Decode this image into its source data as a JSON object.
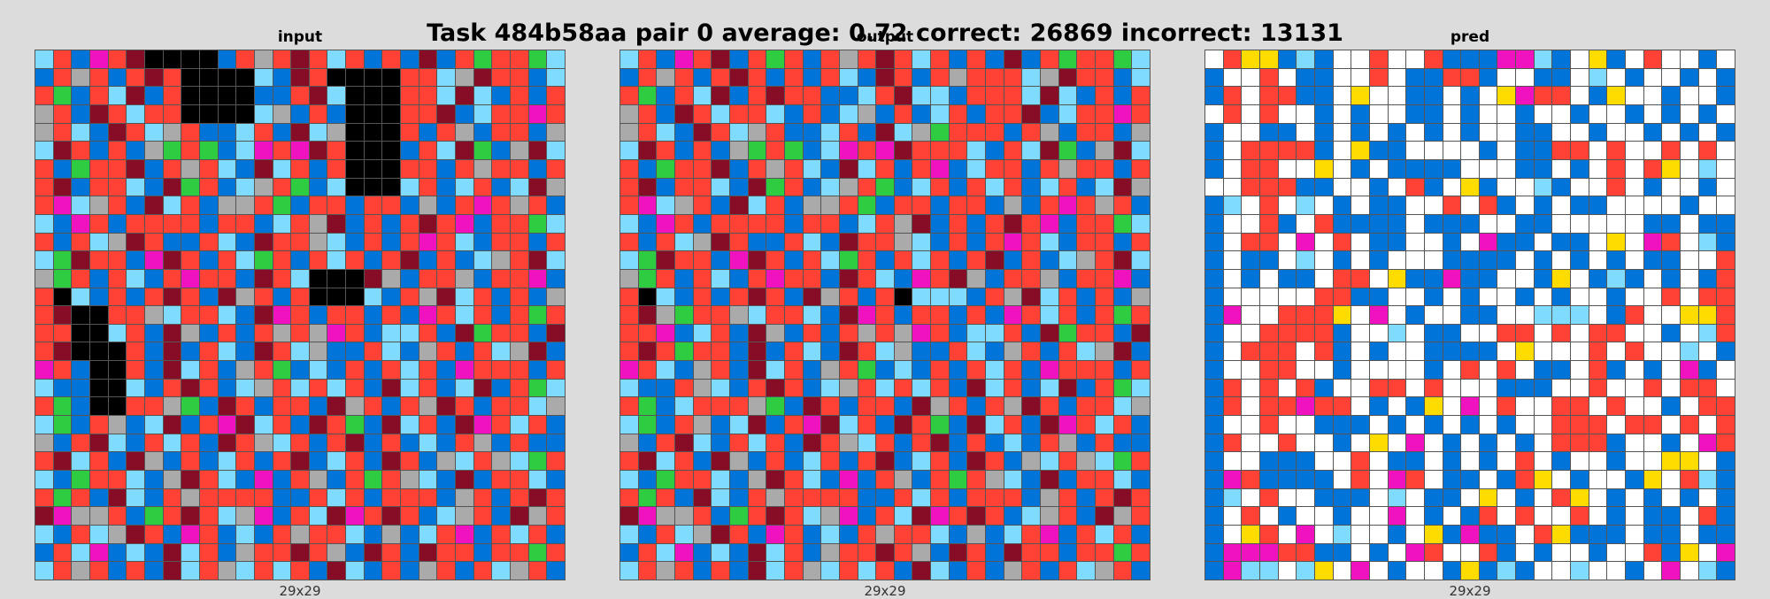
{
  "title": "Task 484b58aa pair 0 average: 0.72 correct: 26869 incorrect: 13131",
  "palette": {
    "0": "#000000",
    "1": "#0074D9",
    "2": "#FF4136",
    "3": "#2ECC40",
    "4": "#FFDC00",
    "5": "#AAAAAA",
    "6": "#F012BE",
    "7": "#7FDBFF",
    "8": "#870C25",
    "w": "#FFFFFF"
  },
  "panels": [
    {
      "label": "input",
      "dims": "29x29",
      "grid": [
        "72162800001252827212181232237",
        "12521282000071820000227582217",
        "23127812000011287000227871212",
        "52182722000075121000228172262",
        "52718275211721875000212512215",
        "78212153231762682000127831587",
        "21322812527187212000221252212",
        "28122718321752317000721721785",
        "26752187215523122122151262521",
        "71621222212217258121282612237",
        "21275821127182257121262712212",
        "73822168212732127212812175287",
        "53212712622182700085122512261",
        "20712128218521200071258721215",
        "28002257227186212212162721232",
        "22007218512125256217721832218",
        "28000218127182751127152127581",
        "62100218721523171212721622212",
        "71100712821752727218721781237",
        "23100225318212218521258212275",
        "73125178126872182318721862721",
        "51287127218257212812171251211",
        "28721851217212817218215725732",
        "71322715827161251232571812271",
        "23218712522221127212221521282",
        "86552132827561278628217521852",
        "71275821621712522715172612721",
        "12761718721522825182182212232",
        "72521218725727218712152127521"
      ]
    },
    {
      "label": "output",
      "dims": "29x29",
      "grid": [
        "72162812321252827212181232237",
        "12521282121271821252227582217",
        "23127812822117287712227871212",
        "52182722712175121721228172262",
        "52718275211721875322212512215",
        "78212153231762682227127831587",
        "21322812527187212617221252212",
        "28122718321752317212721721785",
        "26752187215523122122151262521",
        "71621222212217258121282612237",
        "21275821127182257121262712212",
        "73822168212732127212812175287",
        "53212712622182716285122512261",
        "20712128218521207771258721215",
        "28532257227186212212162721232",
        "22617218512125256217721832218",
        "28232218127182751127152127581",
        "62715218721523171212721622212",
        "71125712821752727218721781237",
        "23172225318212218521258212275",
        "73125178126872182318721862721",
        "51287127218257212812171251211",
        "28721851217212817218215725732",
        "71322715827161251232571812271",
        "23218712522221127212221521282",
        "86552132827561278628217521852",
        "71275821621712522715172612721",
        "12761718721522825182182212232",
        "72521218725727218712152127521"
      ]
    },
    {
      "label": "pred",
      "dims": "29x29",
      "grid": [
        "w244171ww2ww21116671w41w2ww1w",
        "1ww2w11ww2w11221ww11w7w1ww1w1",
        "12w2211w4ww11w1w4622w14ww1ww1",
        "w2w2ww1w1ww11w1ww1ww1ww1w1w1w",
        "1ww11w1w1w1w1w1ww11ww1ww1w1w1",
        "1w22221w411wwww1w1122w2ww2w2w",
        "1w22ww4w1w1111www11w1w2w24w7w",
        "ww22211ww1w21w41ww71ww2w1ww1w",
        "17w2w7w1w11ww2w21w1w11wwww1wi",
        "1ww21w21111w111ww11wwwww11w11",
        "1w22w6w2w11ww1w611w11w4w62w71",
        "1w11w7w1w1www1111w1w1w1w11ww2",
        "1w1w11w22w411611ww14w171w1w12",
        "1wwwww2211ww1w1ww1w1ww1ww2w22",
        "16ww2224w6w1ww11ww777w12ww442",
        "1ww22221ww7w11ww22w2w22ww1w72",
        "1w222w21w1ww1111w4www2w2ww7w1",
        "1ww22ww1wwww1w2w2w11w21w1w61w",
        "12w2w21ww22w2www111ww2ww2w22w",
        "12w22622w1w14w6w2ww22w2ww1w22",
        "1ww2ww111w1w1w1w1ww222w22w2w2",
        "12ww2ww1w4w6w1w1w1w2221ww1w62",
        "1ww111ww2w11w1w1w2w1ww1ww44w1",
        "1621111w2w62w11w124w1ww14w271",
        "17w2ww111w7w11w4w1w24w1w1w1w1",
        "1w2w1ww1ww6w1w12w2ww2w1w11w21",
        "1w42w6w7ww1w41611w24111w11w11",
        "16662211w1w62ww21w1ww1ww214w6",
        "1677w74w6w1ww14171ww7ww1w6w71"
      ]
    }
  ]
}
